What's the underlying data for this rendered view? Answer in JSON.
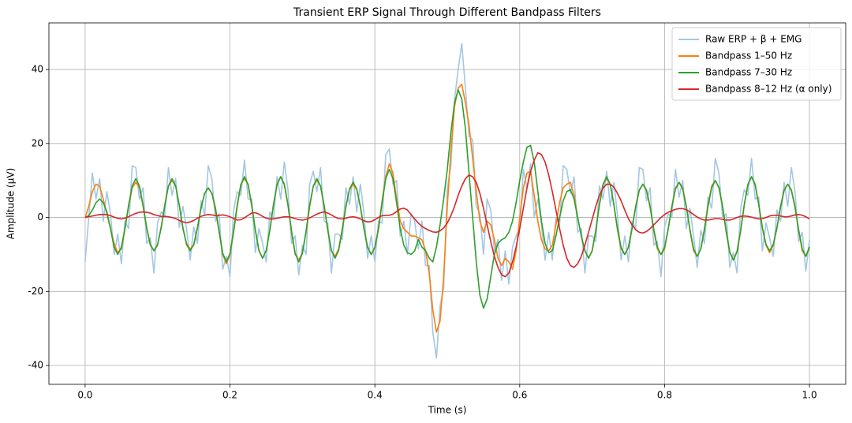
{
  "chart_data": {
    "type": "line",
    "title": "Transient ERP Signal Through Different Bandpass Filters",
    "x_label": "Time (s)",
    "y_label": "Amplitude (μV)",
    "xlim": [
      -0.05,
      1.05
    ],
    "ylim": [
      -45.1,
      52.6
    ],
    "xticks": [
      {
        "value": 0,
        "label": "0.0"
      },
      0.2,
      0.4,
      0.6,
      0.8,
      {
        "value": 1,
        "label": "1.0"
      }
    ],
    "yticks": [
      -40,
      -20,
      0,
      20,
      40
    ],
    "grid": true,
    "legend": "upper-right",
    "x": [
      0,
      0.005,
      0.01,
      0.015,
      0.02,
      0.025,
      0.03,
      0.035,
      0.04,
      0.045,
      0.05,
      0.055,
      0.06,
      0.065,
      0.07,
      0.075,
      0.08,
      0.085,
      0.09,
      0.095,
      0.1,
      0.105,
      0.11,
      0.115,
      0.12,
      0.125,
      0.13,
      0.135,
      0.14,
      0.145,
      0.15,
      0.155,
      0.16,
      0.165,
      0.17,
      0.175,
      0.18,
      0.185,
      0.19,
      0.195,
      0.2,
      0.205,
      0.21,
      0.215,
      0.22,
      0.225,
      0.23,
      0.235,
      0.24,
      0.245,
      0.25,
      0.255,
      0.26,
      0.265,
      0.27,
      0.275,
      0.28,
      0.285,
      0.29,
      0.295,
      0.3,
      0.305,
      0.31,
      0.315,
      0.32,
      0.325,
      0.33,
      0.335,
      0.34,
      0.345,
      0.35,
      0.355,
      0.36,
      0.365,
      0.37,
      0.375,
      0.38,
      0.385,
      0.39,
      0.395,
      0.4,
      0.405,
      0.41,
      0.415,
      0.42,
      0.425,
      0.43,
      0.435,
      0.44,
      0.445,
      0.45,
      0.455,
      0.46,
      0.465,
      0.47,
      0.475,
      0.48,
      0.485,
      0.49,
      0.495,
      0.5,
      0.505,
      0.51,
      0.515,
      0.52,
      0.525,
      0.53,
      0.535,
      0.54,
      0.545,
      0.55,
      0.555,
      0.56,
      0.565,
      0.57,
      0.575,
      0.58,
      0.585,
      0.59,
      0.595,
      0.6,
      0.605,
      0.61,
      0.615,
      0.62,
      0.625,
      0.63,
      0.635,
      0.64,
      0.645,
      0.65,
      0.655,
      0.66,
      0.665,
      0.67,
      0.675,
      0.68,
      0.685,
      0.69,
      0.695,
      0.7,
      0.705,
      0.71,
      0.715,
      0.72,
      0.725,
      0.73,
      0.735,
      0.74,
      0.745,
      0.75,
      0.755,
      0.76,
      0.765,
      0.77,
      0.775,
      0.78,
      0.785,
      0.79,
      0.795,
      0.8,
      0.805,
      0.81,
      0.815,
      0.82,
      0.825,
      0.83,
      0.835,
      0.84,
      0.845,
      0.85,
      0.855,
      0.86,
      0.865,
      0.87,
      0.875,
      0.88,
      0.885,
      0.89,
      0.895,
      0.9,
      0.905,
      0.91,
      0.915,
      0.92,
      0.925,
      0.93,
      0.935,
      0.94,
      0.945,
      0.95,
      0.955,
      0.96,
      0.965,
      0.97,
      0.975,
      0.98,
      0.985,
      0.99,
      0.995,
      1
    ],
    "series": [
      {
        "name": "Raw ERP + β + EMG",
        "color": "#a3c7e3",
        "values": [
          -12,
          0,
          12,
          5,
          10.5,
          -1,
          7,
          1,
          -10,
          -4.5,
          -12.5,
          -1,
          -3,
          14,
          13.5,
          5,
          8,
          -7,
          -5.5,
          -15,
          -1.5,
          1.5,
          0.5,
          13.5,
          6,
          10.5,
          -2.7,
          3,
          -3,
          -11.5,
          -2.5,
          -7,
          4.5,
          0.5,
          14,
          10.5,
          -1,
          1,
          -14,
          -10.5,
          -16,
          2,
          7,
          6,
          15.5,
          5,
          5,
          -9.5,
          -3,
          -7,
          -12,
          1.5,
          -0.5,
          11,
          5,
          15,
          7.5,
          -7,
          -5,
          -15.5,
          -7.5,
          -10,
          9,
          12.5,
          7,
          13.5,
          -1,
          -1.5,
          -15,
          -4.5,
          -4.5,
          -6,
          8,
          3.5,
          11,
          1.5,
          9,
          1,
          -11,
          -5,
          -12,
          -1,
          -1.5,
          17,
          18.5,
          9,
          10,
          -5,
          -1,
          -10,
          1,
          -1,
          -8.5,
          -1,
          -13,
          -13,
          -31,
          -38,
          -24,
          -19,
          8,
          14,
          32,
          40,
          47,
          35,
          22,
          21,
          3,
          1,
          -10,
          5,
          2,
          -9,
          -6,
          -17,
          -9,
          -18,
          -8,
          -5,
          -3,
          13,
          8,
          14.5,
          0,
          5,
          -2,
          -11.5,
          -4,
          -11.5,
          0,
          -2,
          14,
          13,
          6.5,
          11,
          -4,
          -3,
          -15,
          -5,
          -5,
          -6.5,
          8.5,
          5,
          12.5,
          3,
          9.5,
          0.5,
          -11.5,
          -5,
          -12,
          -1,
          -3,
          13.5,
          13,
          4.5,
          8,
          -7.5,
          -6.5,
          -16,
          -2.5,
          1,
          0,
          13,
          5.5,
          10,
          -3,
          2.5,
          -5,
          -13.5,
          -3.5,
          -7,
          5.5,
          2.5,
          16,
          12,
          0,
          1,
          -13.5,
          -9.5,
          -15,
          2.5,
          7.5,
          6,
          16,
          5,
          5.5,
          -9,
          -1.5,
          -5.5,
          -10.5,
          2,
          -1,
          9.5,
          3,
          13.5,
          7,
          -6.5,
          -4,
          -14.5,
          -6
        ]
      },
      {
        "name": "Bandpass 1–50 Hz",
        "color": "#ff7f0e",
        "values": [
          0,
          3,
          7,
          9,
          8.5,
          5,
          1,
          -3,
          -7,
          -9.5,
          -8.5,
          -3,
          3,
          8,
          9.5,
          8,
          3,
          -3,
          -7.5,
          -9,
          -7.5,
          -2.5,
          3.5,
          8.5,
          10,
          8.5,
          3.3,
          -3,
          -7,
          -8.5,
          -7.5,
          -3,
          2.5,
          6.5,
          8,
          6.5,
          2,
          -4,
          -10,
          -12.5,
          -10,
          -4,
          3,
          9,
          10.5,
          9,
          3,
          -3.5,
          -9,
          -11,
          -9,
          -3.5,
          3.5,
          9,
          11,
          9,
          3.5,
          -4,
          -10,
          -11.5,
          -9.5,
          -4,
          3,
          8.5,
          10,
          8.5,
          3,
          -3.5,
          -9,
          -10.5,
          -8.5,
          -3,
          3,
          7.5,
          9,
          7.5,
          3,
          -3,
          -8,
          -10,
          -8,
          -3,
          4.5,
          11,
          14.5,
          12,
          5,
          -1,
          -3,
          -4,
          -5,
          -5,
          -5.5,
          -6,
          -9,
          -15,
          -25,
          -31,
          -28,
          -16,
          3,
          18,
          30,
          35,
          36,
          31,
          25,
          16,
          7,
          -1,
          -4,
          -1,
          -2,
          -6,
          -11,
          -13,
          -11,
          -12,
          -14,
          -9,
          0,
          8,
          12,
          12.5,
          6,
          -1,
          -6,
          -8.5,
          -9,
          -7.5,
          -2,
          4,
          8,
          9,
          9.5,
          6,
          0,
          -5,
          -9,
          -11,
          -9,
          -3.5,
          3.5,
          9,
          10.5,
          9,
          3.5,
          -3.5,
          -8.5,
          -10,
          -8,
          -3,
          3,
          7.5,
          9,
          7.5,
          3,
          -3.5,
          -8.5,
          -10,
          -8.5,
          -3,
          3,
          8,
          9.5,
          8,
          3,
          -3.5,
          -9,
          -10.5,
          -8.5,
          -3,
          3.5,
          8.5,
          10,
          8,
          3,
          -4,
          -9.5,
          -11.5,
          -9,
          -3.5,
          3.5,
          9,
          11,
          9,
          3.5,
          -3,
          -7.5,
          -9.5,
          -7.5,
          -3,
          3,
          7.5,
          9,
          7.5,
          3,
          -3.5,
          -9,
          -10.5,
          -8
        ]
      },
      {
        "name": "Bandpass 7–30 Hz",
        "color": "#2ca02c",
        "values": [
          0,
          0.5,
          2,
          4,
          5,
          4,
          1.5,
          -3,
          -8,
          -10,
          -8,
          -3,
          3.3,
          8.5,
          10.5,
          8.5,
          3.3,
          -2.8,
          -7.3,
          -9,
          -7.3,
          -2.8,
          3.3,
          8.5,
          10.5,
          8.5,
          3.3,
          -2.8,
          -7.3,
          -9,
          -7.3,
          -2.8,
          2.5,
          6.5,
          8,
          6.5,
          2.5,
          -3.7,
          -9.7,
          -12,
          -9.7,
          -3.7,
          3.4,
          8.9,
          11,
          8.9,
          3.4,
          -3.4,
          -8.9,
          -11,
          -8.9,
          -3.4,
          3.4,
          8.9,
          11,
          8.9,
          3.4,
          -3.7,
          -9.7,
          -12,
          -9.7,
          -3.7,
          3.3,
          8.5,
          10.5,
          8.5,
          3.3,
          -3.4,
          -8.9,
          -11,
          -8.9,
          -3.4,
          2.9,
          7.7,
          9.5,
          7.7,
          2.9,
          -3.1,
          -8.1,
          -10,
          -8.1,
          -3.1,
          4,
          10.5,
          13,
          10.5,
          4,
          -3,
          -7.5,
          -9.5,
          -10,
          -9,
          -6,
          -8,
          -9,
          -11,
          -12,
          -8,
          -2,
          5,
          13,
          23,
          31,
          34.5,
          32,
          24,
          12,
          0,
          -12,
          -21,
          -24.5,
          -22,
          -16,
          -10,
          -7,
          -6,
          -5.5,
          -4,
          -1,
          4,
          10,
          15,
          19,
          19.5,
          15,
          7,
          -1,
          -7,
          -9.5,
          -9,
          -5,
          0,
          4.5,
          7,
          7.5,
          5,
          0,
          -5,
          -9,
          -11,
          -9,
          -3.5,
          3.4,
          8.9,
          11,
          8.9,
          3.4,
          -3.1,
          -8.1,
          -10,
          -8.1,
          -3.1,
          2.8,
          7.3,
          9,
          7.3,
          2.8,
          -3.1,
          -8.1,
          -10,
          -8.1,
          -3.1,
          2.9,
          7.7,
          9.5,
          7.7,
          2.9,
          -3.3,
          -8.5,
          -10.5,
          -8.5,
          -3.3,
          3.1,
          8.1,
          10,
          8.1,
          3.1,
          -3.6,
          -9.3,
          -11.5,
          -9.3,
          -3.6,
          3.4,
          8.9,
          11,
          8.9,
          3.4,
          -2.8,
          -7.3,
          -9,
          -7.3,
          -2.8,
          2.8,
          7.3,
          9,
          7.3,
          2.8,
          -3.3,
          -8.5,
          -10.5,
          -8
        ]
      },
      {
        "name": "Bandpass 8–12 Hz (α only)",
        "color": "#d62728",
        "values": [
          0,
          0.2,
          0.4,
          0.6,
          0.8,
          0.8,
          0.8,
          0.5,
          0.1,
          -0.2,
          -0.4,
          -0.2,
          0.2,
          0.7,
          1.1,
          1.4,
          1.5,
          1.4,
          1.2,
          0.8,
          0.5,
          0.3,
          0.3,
          0.2,
          0,
          -0.3,
          -0.8,
          -1.2,
          -1.4,
          -1.2,
          -0.8,
          -0.2,
          0.3,
          0.6,
          0.8,
          0.7,
          0.5,
          0.6,
          0.7,
          0.5,
          0.2,
          -0.3,
          -0.7,
          -0.6,
          -0.1,
          0.6,
          1.2,
          1.3,
          0.9,
          0.3,
          -0.2,
          -0.4,
          -0.4,
          -0.2,
          0,
          0.2,
          0.2,
          0,
          -0.3,
          -0.6,
          -0.7,
          -0.5,
          -0.1,
          0.4,
          0.9,
          1.3,
          1.5,
          1.2,
          0.7,
          0.1,
          -0.3,
          -0.4,
          -0.2,
          0.1,
          0.2,
          0,
          -0.4,
          -0.9,
          -1.2,
          -1.1,
          -0.6,
          0,
          0.5,
          0.6,
          0.6,
          0.9,
          1.6,
          2.3,
          2.5,
          2,
          0.8,
          -0.4,
          -1.5,
          -2.4,
          -3,
          -3.5,
          -3.9,
          -4,
          -3.6,
          -2.8,
          -1.5,
          0.5,
          3,
          6,
          8.5,
          10.5,
          11.5,
          11,
          9.5,
          6.5,
          2.5,
          -2,
          -6.5,
          -10.5,
          -13.5,
          -15.5,
          -16,
          -15,
          -12,
          -8,
          -3,
          2.5,
          8,
          12.5,
          15.5,
          17.5,
          17,
          15,
          11.5,
          7,
          2,
          -3,
          -7.5,
          -11,
          -13,
          -13.5,
          -12.5,
          -10.5,
          -7.5,
          -4,
          -0.5,
          3,
          6,
          8,
          9,
          9,
          8.2,
          6.5,
          4.5,
          2,
          -0.3,
          -2,
          -3.3,
          -4,
          -4.2,
          -3.8,
          -3,
          -2,
          -1,
          0,
          0.8,
          1.4,
          1.8,
          2.2,
          2.4,
          2.4,
          2.1,
          1.5,
          0.8,
          0.1,
          -0.4,
          -0.7,
          -0.7,
          -0.5,
          -0.3,
          -0.3,
          -0.5,
          -0.7,
          -0.7,
          -0.4,
          0,
          0.3,
          0.4,
          0.3,
          0.1,
          -0.2,
          -0.4,
          -0.3,
          0,
          0.4,
          0.6,
          0.6,
          0.4,
          0.2,
          0.2,
          0.4,
          0.7,
          0.8,
          0.6,
          0.2,
          -0.4
        ]
      }
    ]
  }
}
